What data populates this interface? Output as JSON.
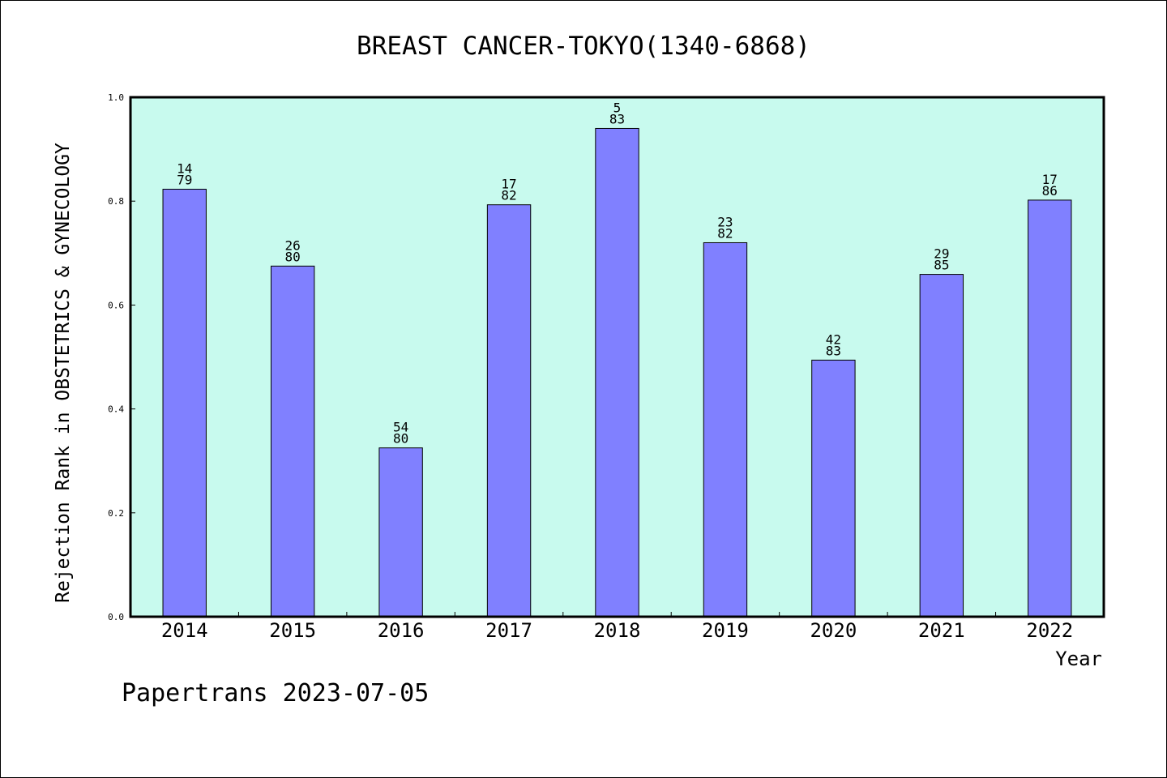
{
  "chart_data": {
    "type": "bar",
    "title": "BREAST CANCER-TOKYO(1340-6868)",
    "xlabel": "Year",
    "ylabel": "Rejection Rank in OBSTETRICS & GYNECOLOGY",
    "categories": [
      "2014",
      "2015",
      "2016",
      "2017",
      "2018",
      "2019",
      "2020",
      "2021",
      "2022"
    ],
    "series": [
      {
        "values": [
          0.823,
          0.675,
          0.325,
          0.793,
          0.94,
          0.72,
          0.494,
          0.659,
          0.802
        ],
        "rank_labels": [
          "14",
          "26",
          "54",
          "17",
          "5",
          "23",
          "42",
          "29",
          "17"
        ],
        "total_labels": [
          "79",
          "80",
          "80",
          "82",
          "83",
          "82",
          "83",
          "85",
          "86"
        ]
      }
    ],
    "ylim": [
      0.0,
      1.0
    ],
    "yticks": [
      "0.0",
      "0.2",
      "0.4",
      "0.6",
      "0.8",
      "1.0"
    ],
    "grid": false,
    "colors": {
      "bar": "#8080ff",
      "plot_background": "#c8faee",
      "outline": "#000000"
    }
  },
  "footer": {
    "text": "Papertrans 2023-07-05"
  }
}
